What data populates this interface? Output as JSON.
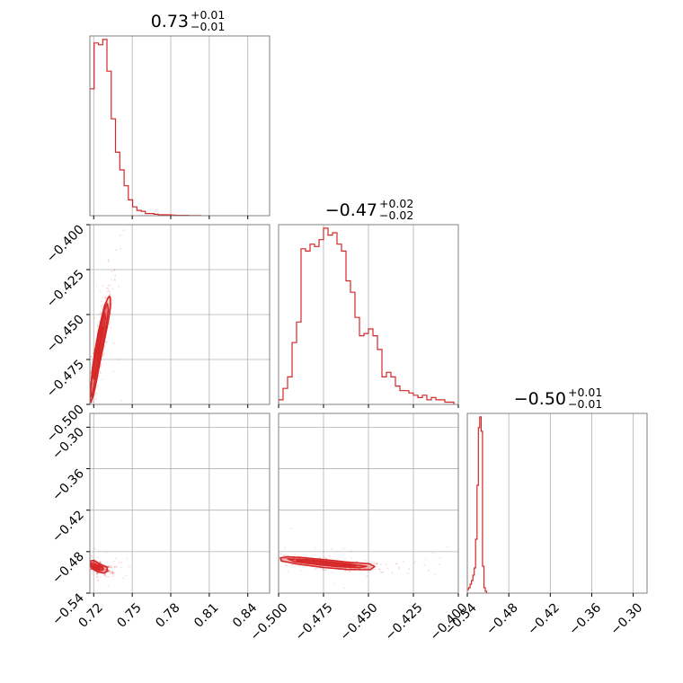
{
  "chart_data": {
    "type": "corner",
    "color": "#d62728",
    "grid": true,
    "parameters": [
      {
        "range": [
          0.717,
          0.857
        ],
        "ticks": [
          0.72,
          0.75,
          0.78,
          0.81,
          0.84
        ],
        "tick_labels": [
          "0.72",
          "0.75",
          "0.78",
          "0.81",
          "0.84"
        ],
        "title": {
          "median": "0.73",
          "plus": "+0.01",
          "minus": "−0.01"
        },
        "histogram": {
          "bin_width": 0.00333,
          "counts": [
            0.72,
            0.98,
            0.97,
            1.0,
            0.82,
            0.55,
            0.36,
            0.26,
            0.17,
            0.09,
            0.05,
            0.03,
            0.025,
            0.012,
            0.012,
            0.008,
            0.005,
            0.005,
            0.005,
            0.003,
            0.002,
            0.002,
            0.002,
            0.001,
            0.001,
            0.001
          ]
        }
      },
      {
        "range": [
          -0.5,
          -0.4
        ],
        "ticks": [
          -0.5,
          -0.475,
          -0.45,
          -0.425,
          -0.4
        ],
        "tick_labels": [
          "−0.500",
          "−0.475",
          "−0.450",
          "−0.425",
          "−0.400"
        ],
        "title": {
          "median": "−0.47",
          "plus": "+0.02",
          "minus": "−0.02"
        },
        "histogram": {
          "bin_width": 0.0025,
          "counts": [
            0.02,
            0.07,
            0.12,
            0.27,
            0.36,
            0.68,
            0.67,
            0.7,
            0.69,
            0.72,
            0.77,
            0.74,
            0.75,
            0.7,
            0.67,
            0.54,
            0.49,
            0.38,
            0.3,
            0.31,
            0.33,
            0.3,
            0.24,
            0.12,
            0.14,
            0.12,
            0.08,
            0.06,
            0.06,
            0.05,
            0.04,
            0.03,
            0.04,
            0.02,
            0.03,
            0.02,
            0.02,
            0.01,
            0.01
          ]
        }
      },
      {
        "range": [
          -0.54,
          -0.28
        ],
        "ticks": [
          -0.54,
          -0.48,
          -0.42,
          -0.36,
          -0.3
        ],
        "tick_labels": [
          "−0.54",
          "−0.48",
          "−0.42",
          "−0.36",
          "−0.30"
        ],
        "title": {
          "median": "−0.50",
          "plus": "+0.01",
          "minus": "−0.01"
        },
        "histogram": {
          "bin_width": 0.002,
          "counts": [
            0.02,
            0.03,
            0.05,
            0.07,
            0.1,
            0.14,
            0.3,
            0.6,
            0.92,
            0.98,
            0.9,
            0.15,
            0.03,
            0.01
          ]
        }
      }
    ],
    "pairs": [
      {
        "x_param": 0,
        "y_param": 1,
        "contours": [
          [
            [
              0.7172,
              -0.4965
            ],
            [
              0.7178,
              -0.49
            ],
            [
              0.719,
              -0.48
            ],
            [
              0.721,
              -0.47
            ],
            [
              0.7235,
              -0.46
            ],
            [
              0.726,
              -0.452
            ],
            [
              0.7285,
              -0.445
            ],
            [
              0.7308,
              -0.4412
            ],
            [
              0.7322,
              -0.4398
            ],
            [
              0.733,
              -0.441
            ],
            [
              0.733,
              -0.446
            ],
            [
              0.7318,
              -0.452
            ],
            [
              0.7296,
              -0.46
            ],
            [
              0.727,
              -0.469
            ],
            [
              0.7245,
              -0.478
            ],
            [
              0.7222,
              -0.487
            ],
            [
              0.7198,
              -0.495
            ],
            [
              0.7178,
              -0.499
            ]
          ],
          [
            [
              0.7176,
              -0.492
            ],
            [
              0.7188,
              -0.482
            ],
            [
              0.7208,
              -0.472
            ],
            [
              0.7233,
              -0.462
            ],
            [
              0.7258,
              -0.454
            ],
            [
              0.7282,
              -0.4475
            ],
            [
              0.7305,
              -0.444
            ],
            [
              0.7315,
              -0.447
            ],
            [
              0.7302,
              -0.454
            ],
            [
              0.7278,
              -0.463
            ],
            [
              0.7252,
              -0.472
            ],
            [
              0.7228,
              -0.481
            ],
            [
              0.7202,
              -0.49
            ],
            [
              0.7184,
              -0.496
            ]
          ],
          [
            [
              0.7195,
              -0.485
            ],
            [
              0.7214,
              -0.474
            ],
            [
              0.7238,
              -0.463
            ],
            [
              0.7262,
              -0.455
            ],
            [
              0.7284,
              -0.449
            ],
            [
              0.7292,
              -0.452
            ],
            [
              0.7272,
              -0.46
            ],
            [
              0.7248,
              -0.469
            ],
            [
              0.7225,
              -0.478
            ],
            [
              0.7205,
              -0.486
            ]
          ],
          [
            [
              0.7225,
              -0.475
            ],
            [
              0.7248,
              -0.464
            ],
            [
              0.7268,
              -0.457
            ],
            [
              0.7262,
              -0.461
            ],
            [
              0.7242,
              -0.469
            ],
            [
              0.7229,
              -0.476
            ]
          ]
        ],
        "points_seed": 7
      },
      {
        "x_param": 0,
        "y_param": 2,
        "contours": [
          [
            [
              0.7172,
              -0.4935
            ],
            [
              0.72,
              -0.4925
            ],
            [
              0.7245,
              -0.4975
            ],
            [
              0.73,
              -0.5022
            ],
            [
              0.731,
              -0.5078
            ],
            [
              0.728,
              -0.511
            ],
            [
              0.723,
              -0.5092
            ],
            [
              0.7185,
              -0.5045
            ],
            [
              0.7172,
              -0.4985
            ]
          ],
          [
            [
              0.718,
              -0.4968
            ],
            [
              0.722,
              -0.4985
            ],
            [
              0.7265,
              -0.5015
            ],
            [
              0.7275,
              -0.506
            ],
            [
              0.724,
              -0.5075
            ],
            [
              0.7195,
              -0.5035
            ],
            [
              0.7182,
              -0.4995
            ]
          ],
          [
            [
              0.7195,
              -0.5005
            ],
            [
              0.7232,
              -0.502
            ],
            [
              0.7248,
              -0.5048
            ],
            [
              0.7222,
              -0.5052
            ],
            [
              0.7198,
              -0.5028
            ]
          ]
        ],
        "points_seed": 11
      },
      {
        "x_param": 1,
        "y_param": 2,
        "contours": [
          [
            [
              -0.499,
              -0.489
            ],
            [
              -0.495,
              -0.4875
            ],
            [
              -0.487,
              -0.4885
            ],
            [
              -0.475,
              -0.4915
            ],
            [
              -0.462,
              -0.495
            ],
            [
              -0.4495,
              -0.4975
            ],
            [
              -0.4465,
              -0.5015
            ],
            [
              -0.449,
              -0.5062
            ],
            [
              -0.462,
              -0.5058
            ],
            [
              -0.475,
              -0.503
            ],
            [
              -0.488,
              -0.4985
            ],
            [
              -0.4985,
              -0.4935
            ]
          ],
          [
            [
              -0.495,
              -0.4905
            ],
            [
              -0.484,
              -0.4915
            ],
            [
              -0.472,
              -0.4945
            ],
            [
              -0.46,
              -0.498
            ],
            [
              -0.451,
              -0.5012
            ],
            [
              -0.455,
              -0.5032
            ],
            [
              -0.467,
              -0.5018
            ],
            [
              -0.479,
              -0.4985
            ],
            [
              -0.491,
              -0.4945
            ]
          ],
          [
            [
              -0.49,
              -0.4925
            ],
            [
              -0.478,
              -0.4948
            ],
            [
              -0.466,
              -0.4982
            ],
            [
              -0.457,
              -0.5005
            ],
            [
              -0.465,
              -0.501
            ],
            [
              -0.476,
              -0.4985
            ],
            [
              -0.487,
              -0.4955
            ]
          ]
        ],
        "points_seed": 23
      }
    ]
  }
}
